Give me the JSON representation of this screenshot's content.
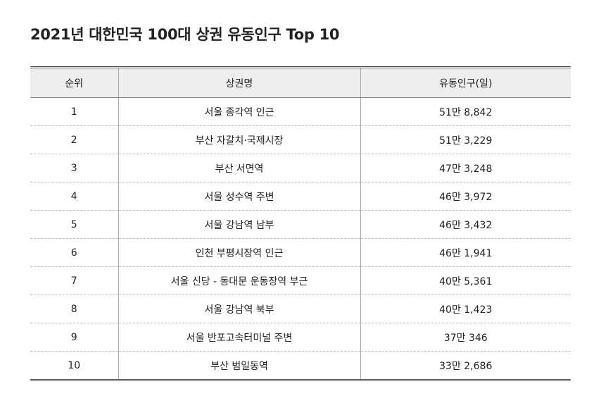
{
  "title": "2021년 대한민국 100대 상권 유동인구 Top 10",
  "table": {
    "headers": [
      "순위",
      "상권명",
      "유동인구(일)"
    ],
    "rows": [
      [
        "1",
        "서울 종각역 인근",
        "51만 8,842"
      ],
      [
        "2",
        "부산 자갈치·국제시장",
        "51만 3,229"
      ],
      [
        "3",
        "부산 서면역",
        "47만 3,248"
      ],
      [
        "4",
        "서울 성수역 주변",
        "46만 3,972"
      ],
      [
        "5",
        "서울 강남역 남부",
        "46만 3,432"
      ],
      [
        "6",
        "인천 부평시장역 인근",
        "46만 1,941"
      ],
      [
        "7",
        "서울 신당 - 동대문 운동장역 부근",
        "40만 5,361"
      ],
      [
        "8",
        "서울 강남역 북부",
        "40만 1,423"
      ],
      [
        "9",
        "서울 반포고속터미널 주변",
        "37만 346"
      ],
      [
        "10",
        "부산 범일동역",
        "33만 2,686"
      ]
    ]
  }
}
